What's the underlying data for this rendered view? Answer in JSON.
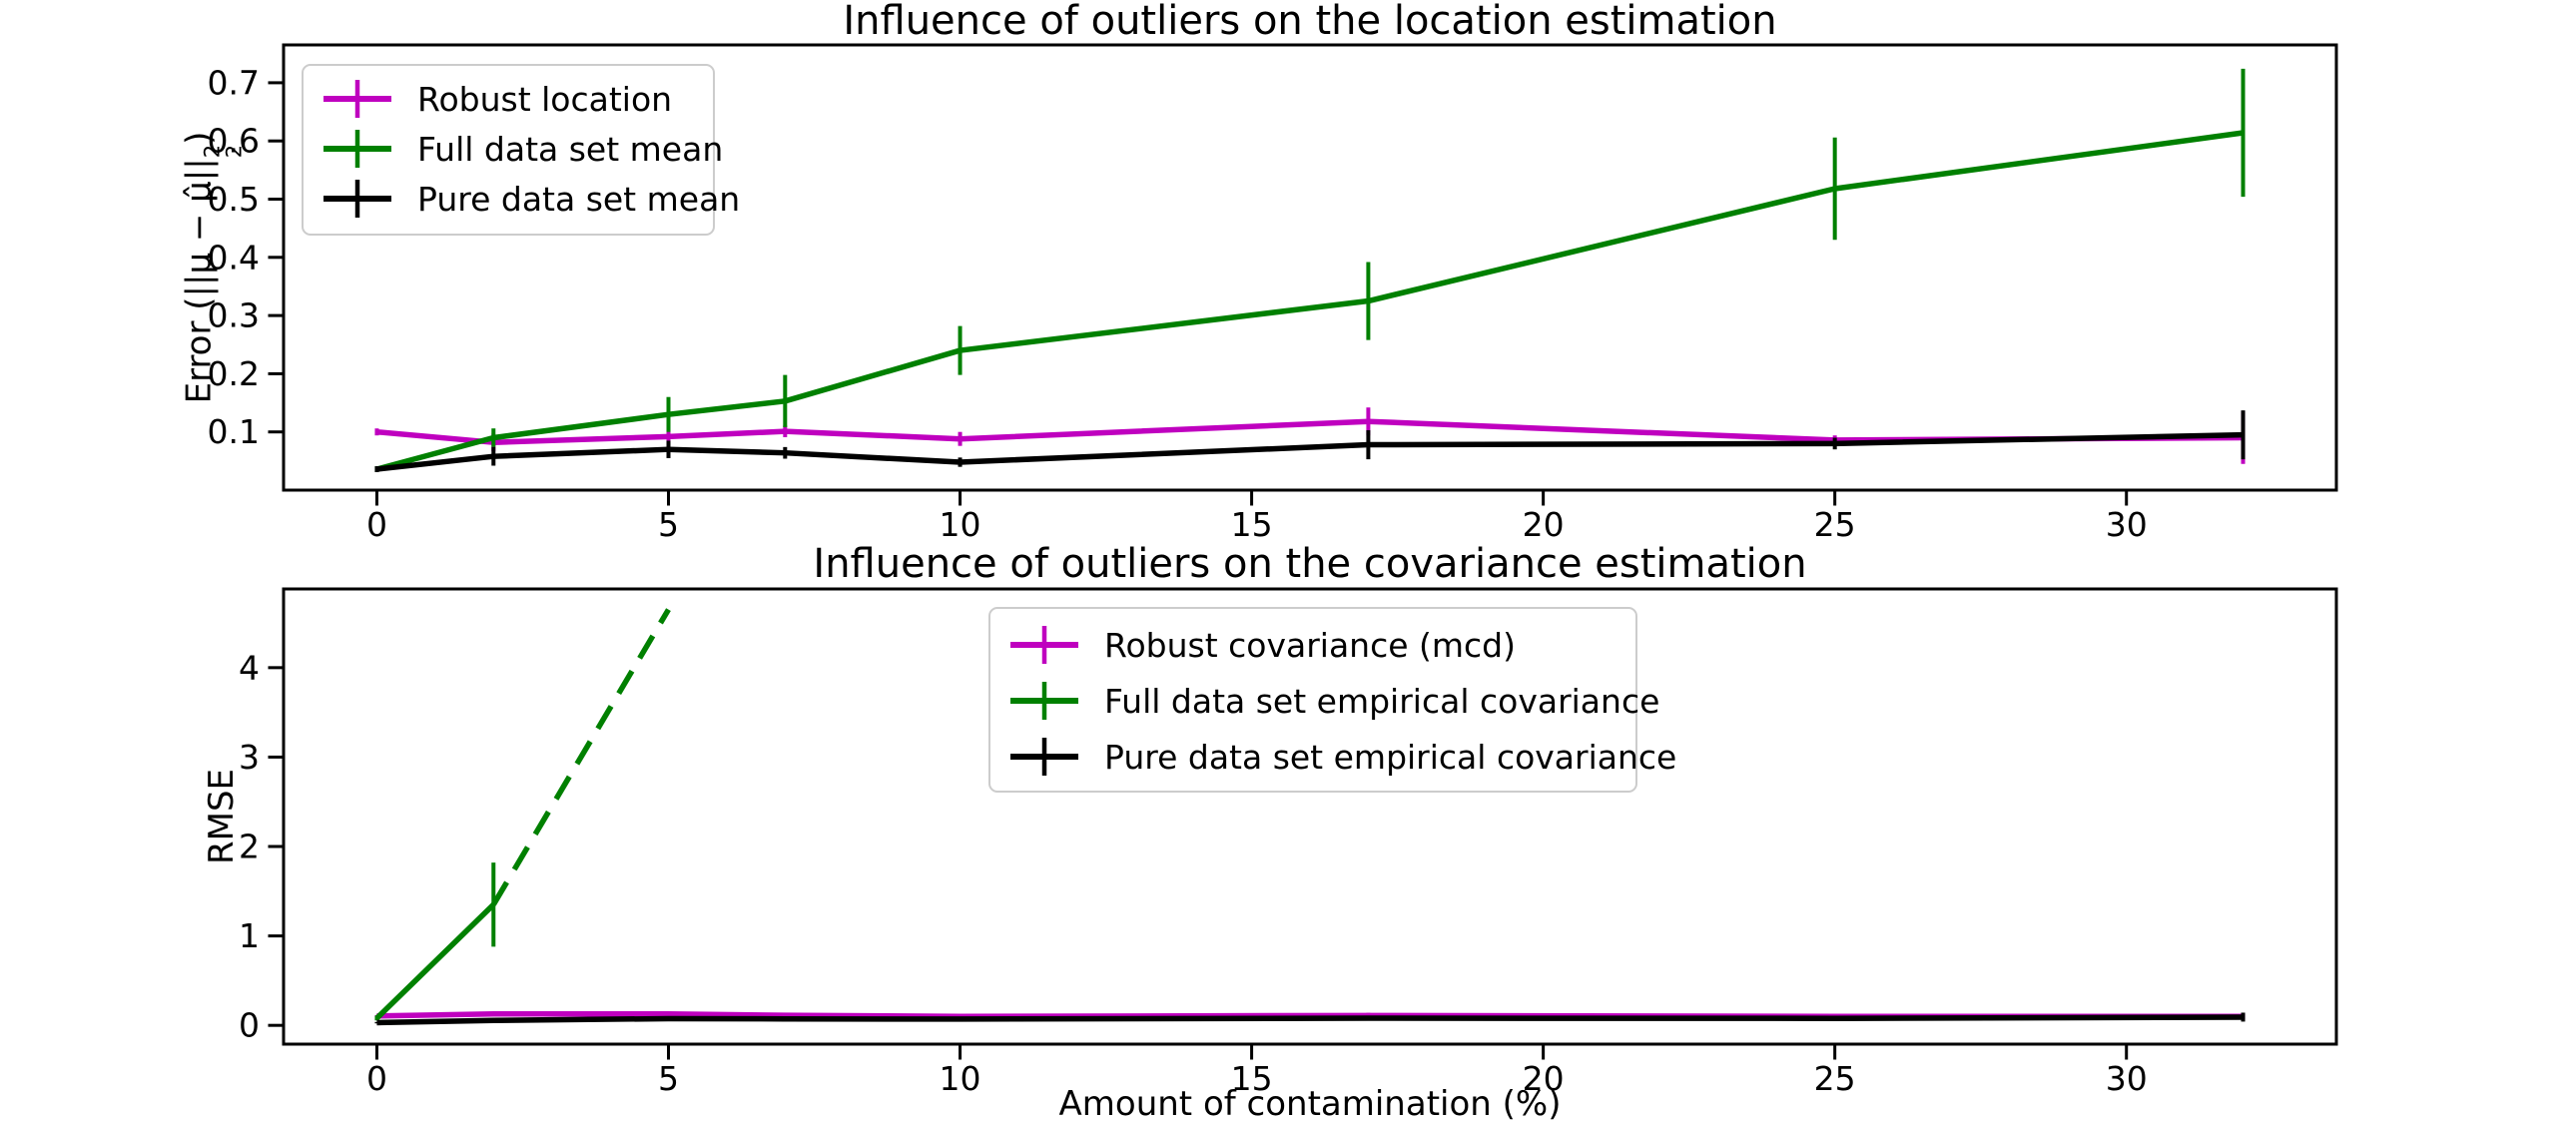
{
  "figure": {
    "background": "#ffffff",
    "text_color": "#000000",
    "axes_edge_color": "#000000",
    "legend_border_color": "#cccccc"
  },
  "chart_data": [
    {
      "type": "line",
      "title": "Influence of outliers on the location estimation",
      "ylabel_parts": {
        "prefix": "Error (||μ − μ̂||",
        "sub": "2",
        "sup": "2",
        "suffix": ")"
      },
      "xlabel": "",
      "x": [
        0,
        2,
        5,
        7,
        10,
        17,
        25,
        32
      ],
      "xlim": [
        -1.6,
        33.6
      ],
      "ylim": [
        0,
        0.765
      ],
      "xticks": [
        0,
        5,
        10,
        15,
        20,
        25,
        30
      ],
      "xtick_labels": [
        "0",
        "5",
        "10",
        "15",
        "20",
        "25",
        "30"
      ],
      "yticks": [
        0.1,
        0.2,
        0.3,
        0.4,
        0.5,
        0.6,
        0.7
      ],
      "ytick_labels": [
        "0.1",
        "0.2",
        "0.3",
        "0.4",
        "0.5",
        "0.6",
        "0.7"
      ],
      "grid": false,
      "legend_position": "upper left",
      "series": [
        {
          "name": "Robust location",
          "color": "#BF00BF",
          "style": "solid",
          "y": [
            0.1,
            0.082,
            0.092,
            0.101,
            0.088,
            0.118,
            0.086,
            0.09
          ],
          "yerr": [
            0.006,
            0.015,
            0.012,
            0.01,
            0.012,
            0.024,
            0.008,
            0.045
          ]
        },
        {
          "name": "Full data set mean",
          "color": "#008000",
          "style": "solid",
          "y": [
            0.036,
            0.09,
            0.13,
            0.153,
            0.24,
            0.325,
            0.518,
            0.614
          ],
          "yerr": [
            0.005,
            0.016,
            0.03,
            0.045,
            0.042,
            0.067,
            0.088,
            0.11
          ]
        },
        {
          "name": "Pure data set mean",
          "color": "#000000",
          "style": "solid",
          "y": [
            0.036,
            0.058,
            0.07,
            0.064,
            0.048,
            0.078,
            0.08,
            0.095
          ],
          "yerr": [
            0.005,
            0.016,
            0.015,
            0.01,
            0.008,
            0.025,
            0.01,
            0.042
          ]
        }
      ]
    },
    {
      "type": "line",
      "title": "Influence of outliers on the covariance estimation",
      "ylabel": "RMSE",
      "xlabel": "Amount of contamination (%)",
      "x": [
        0,
        2,
        5,
        7,
        10,
        17,
        25,
        32
      ],
      "xlim": [
        -1.6,
        33.6
      ],
      "ylim": [
        -0.21,
        4.88
      ],
      "xticks": [
        0,
        5,
        10,
        15,
        20,
        25,
        30
      ],
      "xtick_labels": [
        "0",
        "5",
        "10",
        "15",
        "20",
        "25",
        "30"
      ],
      "yticks": [
        0,
        1,
        2,
        3,
        4
      ],
      "ytick_labels": [
        "0",
        "1",
        "2",
        "3",
        "4"
      ],
      "grid": false,
      "legend_position": "upper center",
      "series": [
        {
          "name": "Robust covariance (mcd)",
          "color": "#BF00BF",
          "style": "solid",
          "y": [
            0.105,
            0.128,
            0.128,
            0.112,
            0.1,
            0.11,
            0.1,
            0.1
          ],
          "yerr": [
            0.01,
            0.025,
            0.025,
            0.015,
            0.01,
            0.03,
            0.01,
            0.03
          ]
        },
        {
          "name": "Full data set empirical covariance",
          "color": "#008000",
          "style": "solid",
          "x_subset": [
            0,
            2
          ],
          "y": [
            0.08,
            1.35
          ],
          "yerr": [
            0.025,
            0.47
          ],
          "dashed_extension": {
            "x": [
              2,
              5
            ],
            "y": [
              1.35,
              4.65
            ]
          }
        },
        {
          "name": "Pure data set empirical covariance",
          "color": "#000000",
          "style": "solid",
          "y": [
            0.03,
            0.055,
            0.075,
            0.072,
            0.07,
            0.08,
            0.078,
            0.092
          ],
          "yerr": [
            0.008,
            0.01,
            0.015,
            0.01,
            0.01,
            0.02,
            0.012,
            0.05
          ]
        }
      ]
    }
  ]
}
